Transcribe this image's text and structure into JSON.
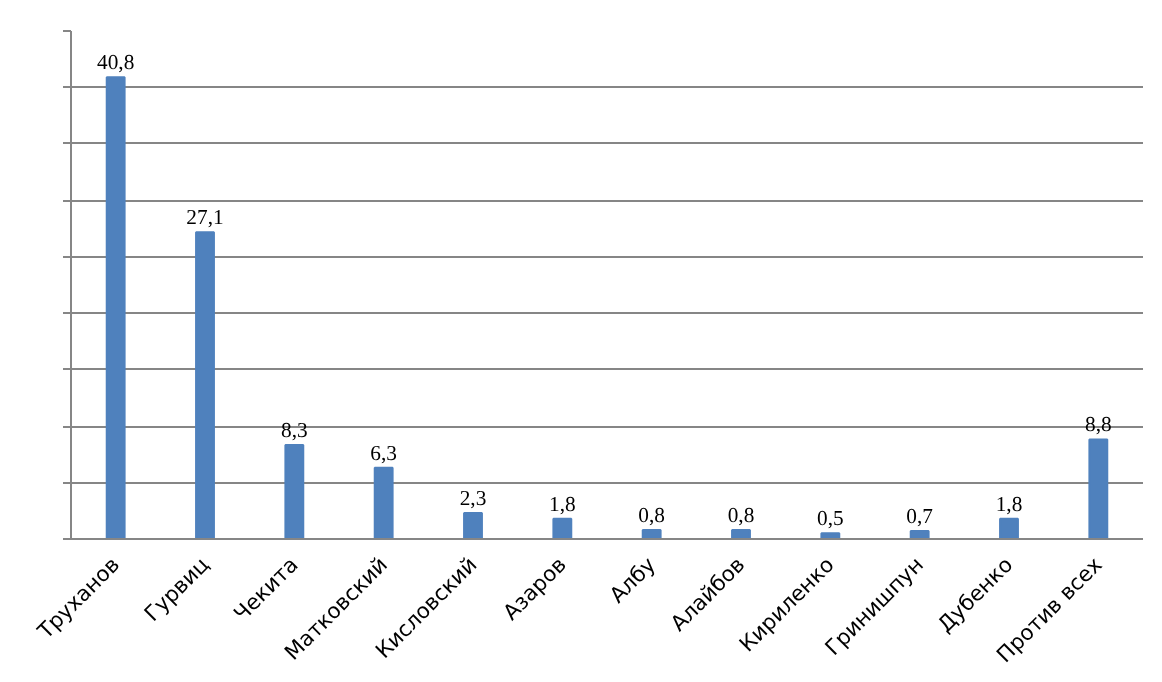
{
  "chart_data": {
    "type": "bar",
    "categories": [
      "Труханов",
      "Гурвиц",
      "Чекита",
      "Матковский",
      "Кисловский",
      "Азаров",
      "Албу",
      "Алайбов",
      "Кириленко",
      "Гринишпун",
      "Дубенко",
      "Против всех"
    ],
    "values": [
      40.8,
      27.1,
      8.3,
      6.3,
      2.3,
      1.8,
      0.8,
      0.8,
      0.5,
      0.7,
      1.8,
      8.8
    ],
    "value_labels": [
      "40,8",
      "27,1",
      "8,3",
      "6,3",
      "2,3",
      "1,8",
      "0,8",
      "0,8",
      "0,5",
      "0,7",
      "1,8",
      "8,8"
    ],
    "color": "#4f81bd",
    "grid": "y",
    "tick_labels": "x"
  }
}
